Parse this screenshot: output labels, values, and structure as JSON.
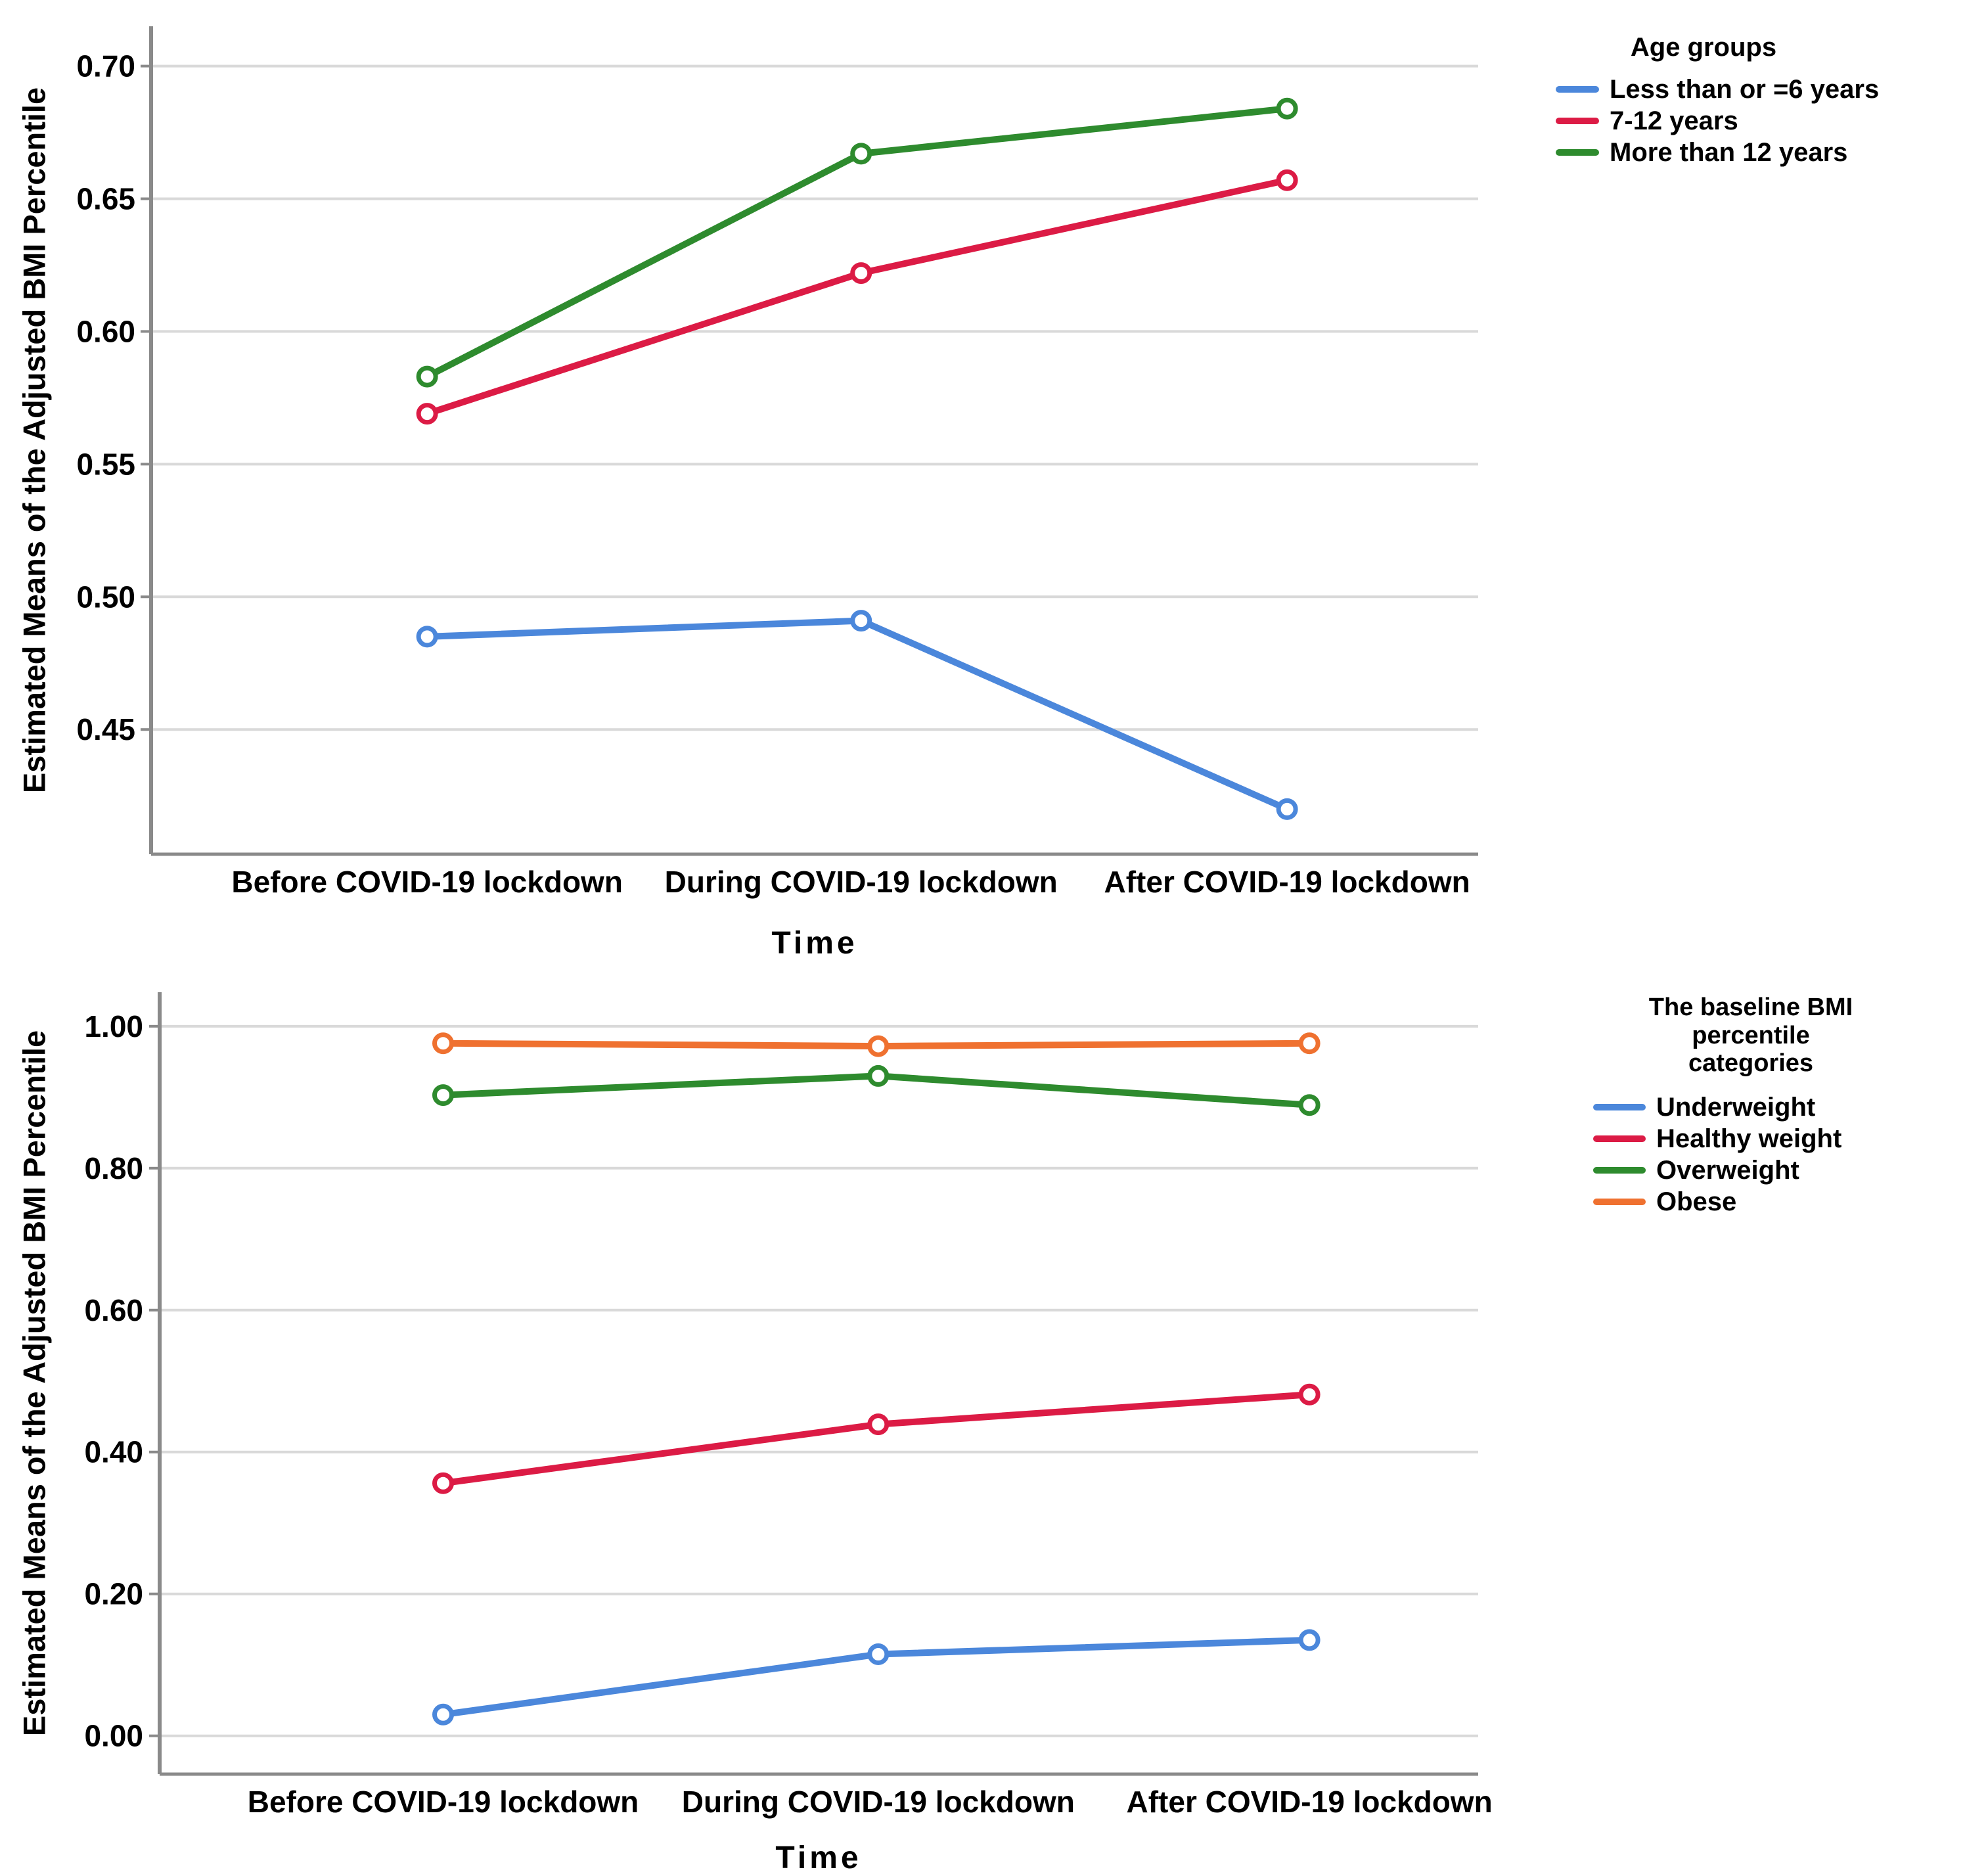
{
  "figure": {
    "background": "#ffffff"
  },
  "colors": {
    "gridline": "#D9D9D9",
    "axis": "#8A8A8A",
    "text": "#000000"
  },
  "chart_data": [
    {
      "type": "line",
      "title": "",
      "ylabel": "Estimated Means of the Adjusted BMI Percentile",
      "xlabel": "Time",
      "categories": [
        "Before COVID-19 lockdown",
        "During COVID-19 lockdown",
        "After COVID-19 lockdown"
      ],
      "legend_title": "Age groups",
      "legend_position": "top-right",
      "grid": true,
      "ylim": [
        0.403,
        0.715
      ],
      "yticks": [
        {
          "v": 0.7,
          "label": "0.70"
        },
        {
          "v": 0.65,
          "label": "0.65"
        },
        {
          "v": 0.6,
          "label": "0.60"
        },
        {
          "v": 0.55,
          "label": "0.55"
        },
        {
          "v": 0.5,
          "label": "0.50"
        },
        {
          "v": 0.45,
          "label": "0.45"
        }
      ],
      "series": [
        {
          "name": "Less than or =6 years",
          "color": "#4B87DB",
          "values": [
            0.485,
            0.491,
            0.42
          ]
        },
        {
          "name": "7-12 years",
          "color": "#DC1B45",
          "values": [
            0.569,
            0.622,
            0.657
          ]
        },
        {
          "name": "More than 12 years",
          "color": "#2E8B2E",
          "values": [
            0.583,
            0.667,
            0.684
          ]
        }
      ]
    },
    {
      "type": "line",
      "title": "",
      "ylabel": "Estimated Means of the Adjusted BMI Percentile",
      "xlabel": "Time",
      "categories": [
        "Before COVID-19 lockdown",
        "During COVID-19 lockdown",
        "After COVID-19 lockdown"
      ],
      "legend_title": "The baseline BMI percentile categories",
      "legend_position": "top-right",
      "grid": true,
      "ylim": [
        -0.054,
        1.048
      ],
      "yticks": [
        {
          "v": 1.0,
          "label": "1.00"
        },
        {
          "v": 0.8,
          "label": "0.80"
        },
        {
          "v": 0.6,
          "label": "0.60"
        },
        {
          "v": 0.4,
          "label": "0.40"
        },
        {
          "v": 0.2,
          "label": "0.20"
        },
        {
          "v": 0.0,
          "label": "0.00"
        }
      ],
      "series": [
        {
          "name": "Underweight",
          "color": "#4B87DB",
          "values": [
            0.03,
            0.115,
            0.135
          ]
        },
        {
          "name": "Healthy weight",
          "color": "#DC1B45",
          "values": [
            0.356,
            0.439,
            0.481
          ]
        },
        {
          "name": "Overweight",
          "color": "#2E8B2E",
          "values": [
            0.903,
            0.93,
            0.889
          ]
        },
        {
          "name": "Obese",
          "color": "#EF7130",
          "values": [
            0.976,
            0.972,
            0.976
          ]
        }
      ]
    }
  ]
}
